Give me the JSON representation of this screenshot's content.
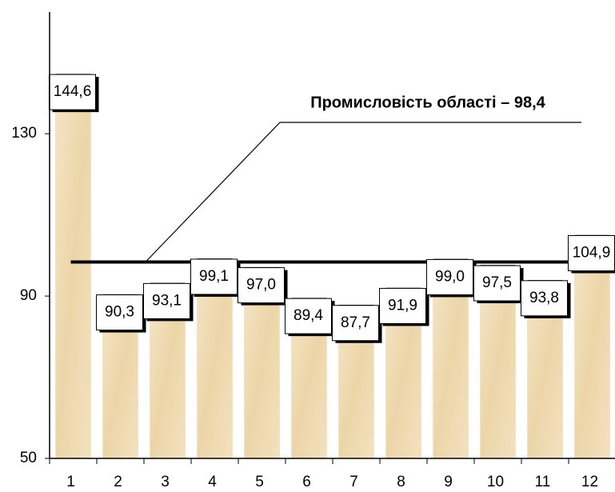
{
  "chart_data": {
    "type": "bar",
    "categories": [
      "1",
      "2",
      "3",
      "4",
      "5",
      "6",
      "7",
      "8",
      "9",
      "10",
      "11",
      "12"
    ],
    "values": [
      144.6,
      90.3,
      93.1,
      99.1,
      97.0,
      89.4,
      87.7,
      91.9,
      99.0,
      97.5,
      93.8,
      104.9
    ],
    "value_labels": [
      "144,6",
      "90,3",
      "93,1",
      "99,1",
      "97,0",
      "89,4",
      "87,7",
      "91,9",
      "99,0",
      "97,5",
      "93,8",
      "104,9"
    ],
    "color": "#f1ddb6",
    "ylim": [
      50,
      160
    ],
    "yticks": [
      50,
      90,
      130
    ],
    "grid": false,
    "reference_line": {
      "value": 98.4,
      "label": "Промисловість області – 98,4"
    }
  }
}
